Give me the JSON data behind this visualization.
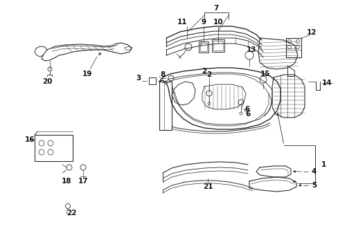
{
  "bg_color": "#ffffff",
  "lc": "#2a2a2a",
  "fig_w": 4.89,
  "fig_h": 3.6,
  "dpi": 100
}
